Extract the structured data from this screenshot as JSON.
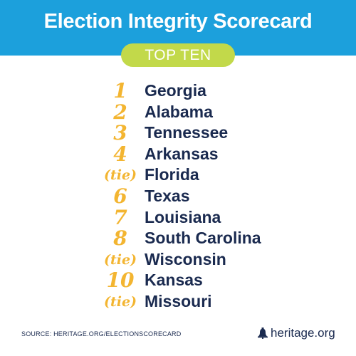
{
  "header": {
    "title": "Election Integrity Scorecard"
  },
  "badge": {
    "label": "TOP TEN"
  },
  "ranking": [
    {
      "rank": "1",
      "state": "Georgia",
      "tie": false
    },
    {
      "rank": "2",
      "state": "Alabama",
      "tie": false
    },
    {
      "rank": "3",
      "state": "Tennessee",
      "tie": false
    },
    {
      "rank": "4",
      "state": "Arkansas",
      "tie": false
    },
    {
      "rank": "(tie)",
      "state": "Florida",
      "tie": true
    },
    {
      "rank": "6",
      "state": "Texas",
      "tie": false
    },
    {
      "rank": "7",
      "state": "Louisiana",
      "tie": false
    },
    {
      "rank": "8",
      "state": "South Carolina",
      "tie": false
    },
    {
      "rank": "(tie)",
      "state": "Wisconsin",
      "tie": true
    },
    {
      "rank": "10",
      "state": "Kansas",
      "tie": false
    },
    {
      "rank": "(tie)",
      "state": "Missouri",
      "tie": true
    }
  ],
  "footer": {
    "source": "SOURCE: HERITAGE.ORG/ELECTIONSCORECARD",
    "brand": "heritage.org",
    "brand_icon": "liberty-bell-icon"
  },
  "colors": {
    "header_blue": "#1ca0dc",
    "badge_green": "#c2d94a",
    "rank_gold": "#f3b531",
    "text_navy": "#1a2a4f"
  }
}
